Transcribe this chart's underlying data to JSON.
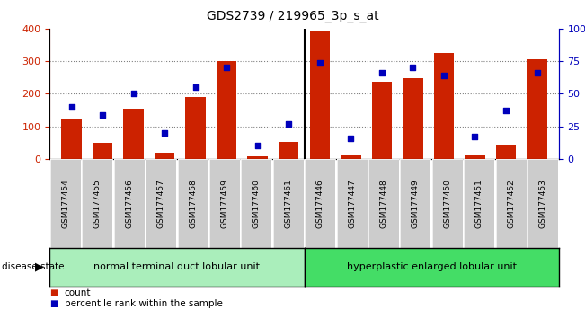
{
  "title": "GDS2739 / 219965_3p_s_at",
  "samples": [
    "GSM177454",
    "GSM177455",
    "GSM177456",
    "GSM177457",
    "GSM177458",
    "GSM177459",
    "GSM177460",
    "GSM177461",
    "GSM177446",
    "GSM177447",
    "GSM177448",
    "GSM177449",
    "GSM177450",
    "GSM177451",
    "GSM177452",
    "GSM177453"
  ],
  "counts": [
    120,
    50,
    155,
    18,
    190,
    300,
    8,
    52,
    395,
    10,
    238,
    247,
    325,
    13,
    45,
    305
  ],
  "percentiles": [
    40,
    34,
    50,
    20,
    55,
    70,
    10,
    27,
    74,
    16,
    66,
    70,
    64,
    17,
    37,
    66
  ],
  "group1_label": "normal terminal duct lobular unit",
  "group2_label": "hyperplastic enlarged lobular unit",
  "group1_count": 8,
  "group2_count": 8,
  "ylim_left": [
    0,
    400
  ],
  "ylim_right": [
    0,
    100
  ],
  "yticks_left": [
    0,
    100,
    200,
    300,
    400
  ],
  "yticks_right": [
    0,
    25,
    50,
    75,
    100
  ],
  "bar_color": "#cc2200",
  "dot_color": "#0000bb",
  "group1_bg": "#aaeebb",
  "group2_bg": "#44dd66",
  "tick_bg": "#cccccc",
  "bg_color": "#ffffff"
}
